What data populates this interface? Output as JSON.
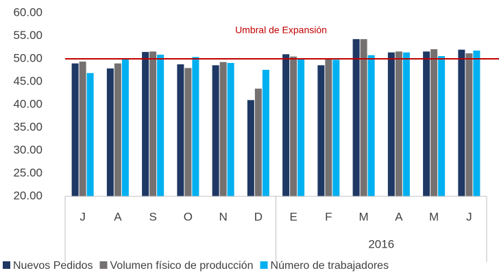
{
  "chart_data": {
    "type": "bar",
    "categories": [
      "J",
      "A",
      "S",
      "O",
      "N",
      "D",
      "E",
      "F",
      "M",
      "A",
      "M",
      "J"
    ],
    "category_groups": [
      {
        "label": "2016",
        "from": 6,
        "to": 11
      }
    ],
    "series": [
      {
        "name": "Nuevos Pedidos",
        "color": "#1f3864",
        "values": [
          49.0,
          47.9,
          51.5,
          48.8,
          48.6,
          41.0,
          51.0,
          48.6,
          54.3,
          51.4,
          51.6,
          52.0
        ]
      },
      {
        "name": "Volumen físico de producción",
        "color": "#767171",
        "values": [
          49.4,
          49.0,
          51.6,
          48.0,
          49.3,
          43.5,
          50.5,
          50.0,
          54.3,
          51.6,
          52.1,
          51.2
        ]
      },
      {
        "name": "Número de trabajadores",
        "color": "#00b0f0",
        "values": [
          46.9,
          50.0,
          50.9,
          50.4,
          49.1,
          47.6,
          50.0,
          49.8,
          50.8,
          51.4,
          50.6,
          51.8
        ]
      }
    ],
    "ylim": [
      20,
      60
    ],
    "yticks": [
      {
        "value": 20,
        "label": "20.00"
      },
      {
        "value": 25,
        "label": "25.00"
      },
      {
        "value": 30,
        "label": "30.00"
      },
      {
        "value": 35,
        "label": "35.00"
      },
      {
        "value": 40,
        "label": "40.00"
      },
      {
        "value": 45,
        "label": "45.00"
      },
      {
        "value": 50,
        "label": "50.00"
      },
      {
        "value": 55,
        "label": "55.00"
      },
      {
        "value": 60,
        "label": "60.00"
      }
    ],
    "reference_line": {
      "value": 50,
      "label": "Umbral de Expansión",
      "color": "#c00000"
    },
    "legend": "bottom"
  }
}
